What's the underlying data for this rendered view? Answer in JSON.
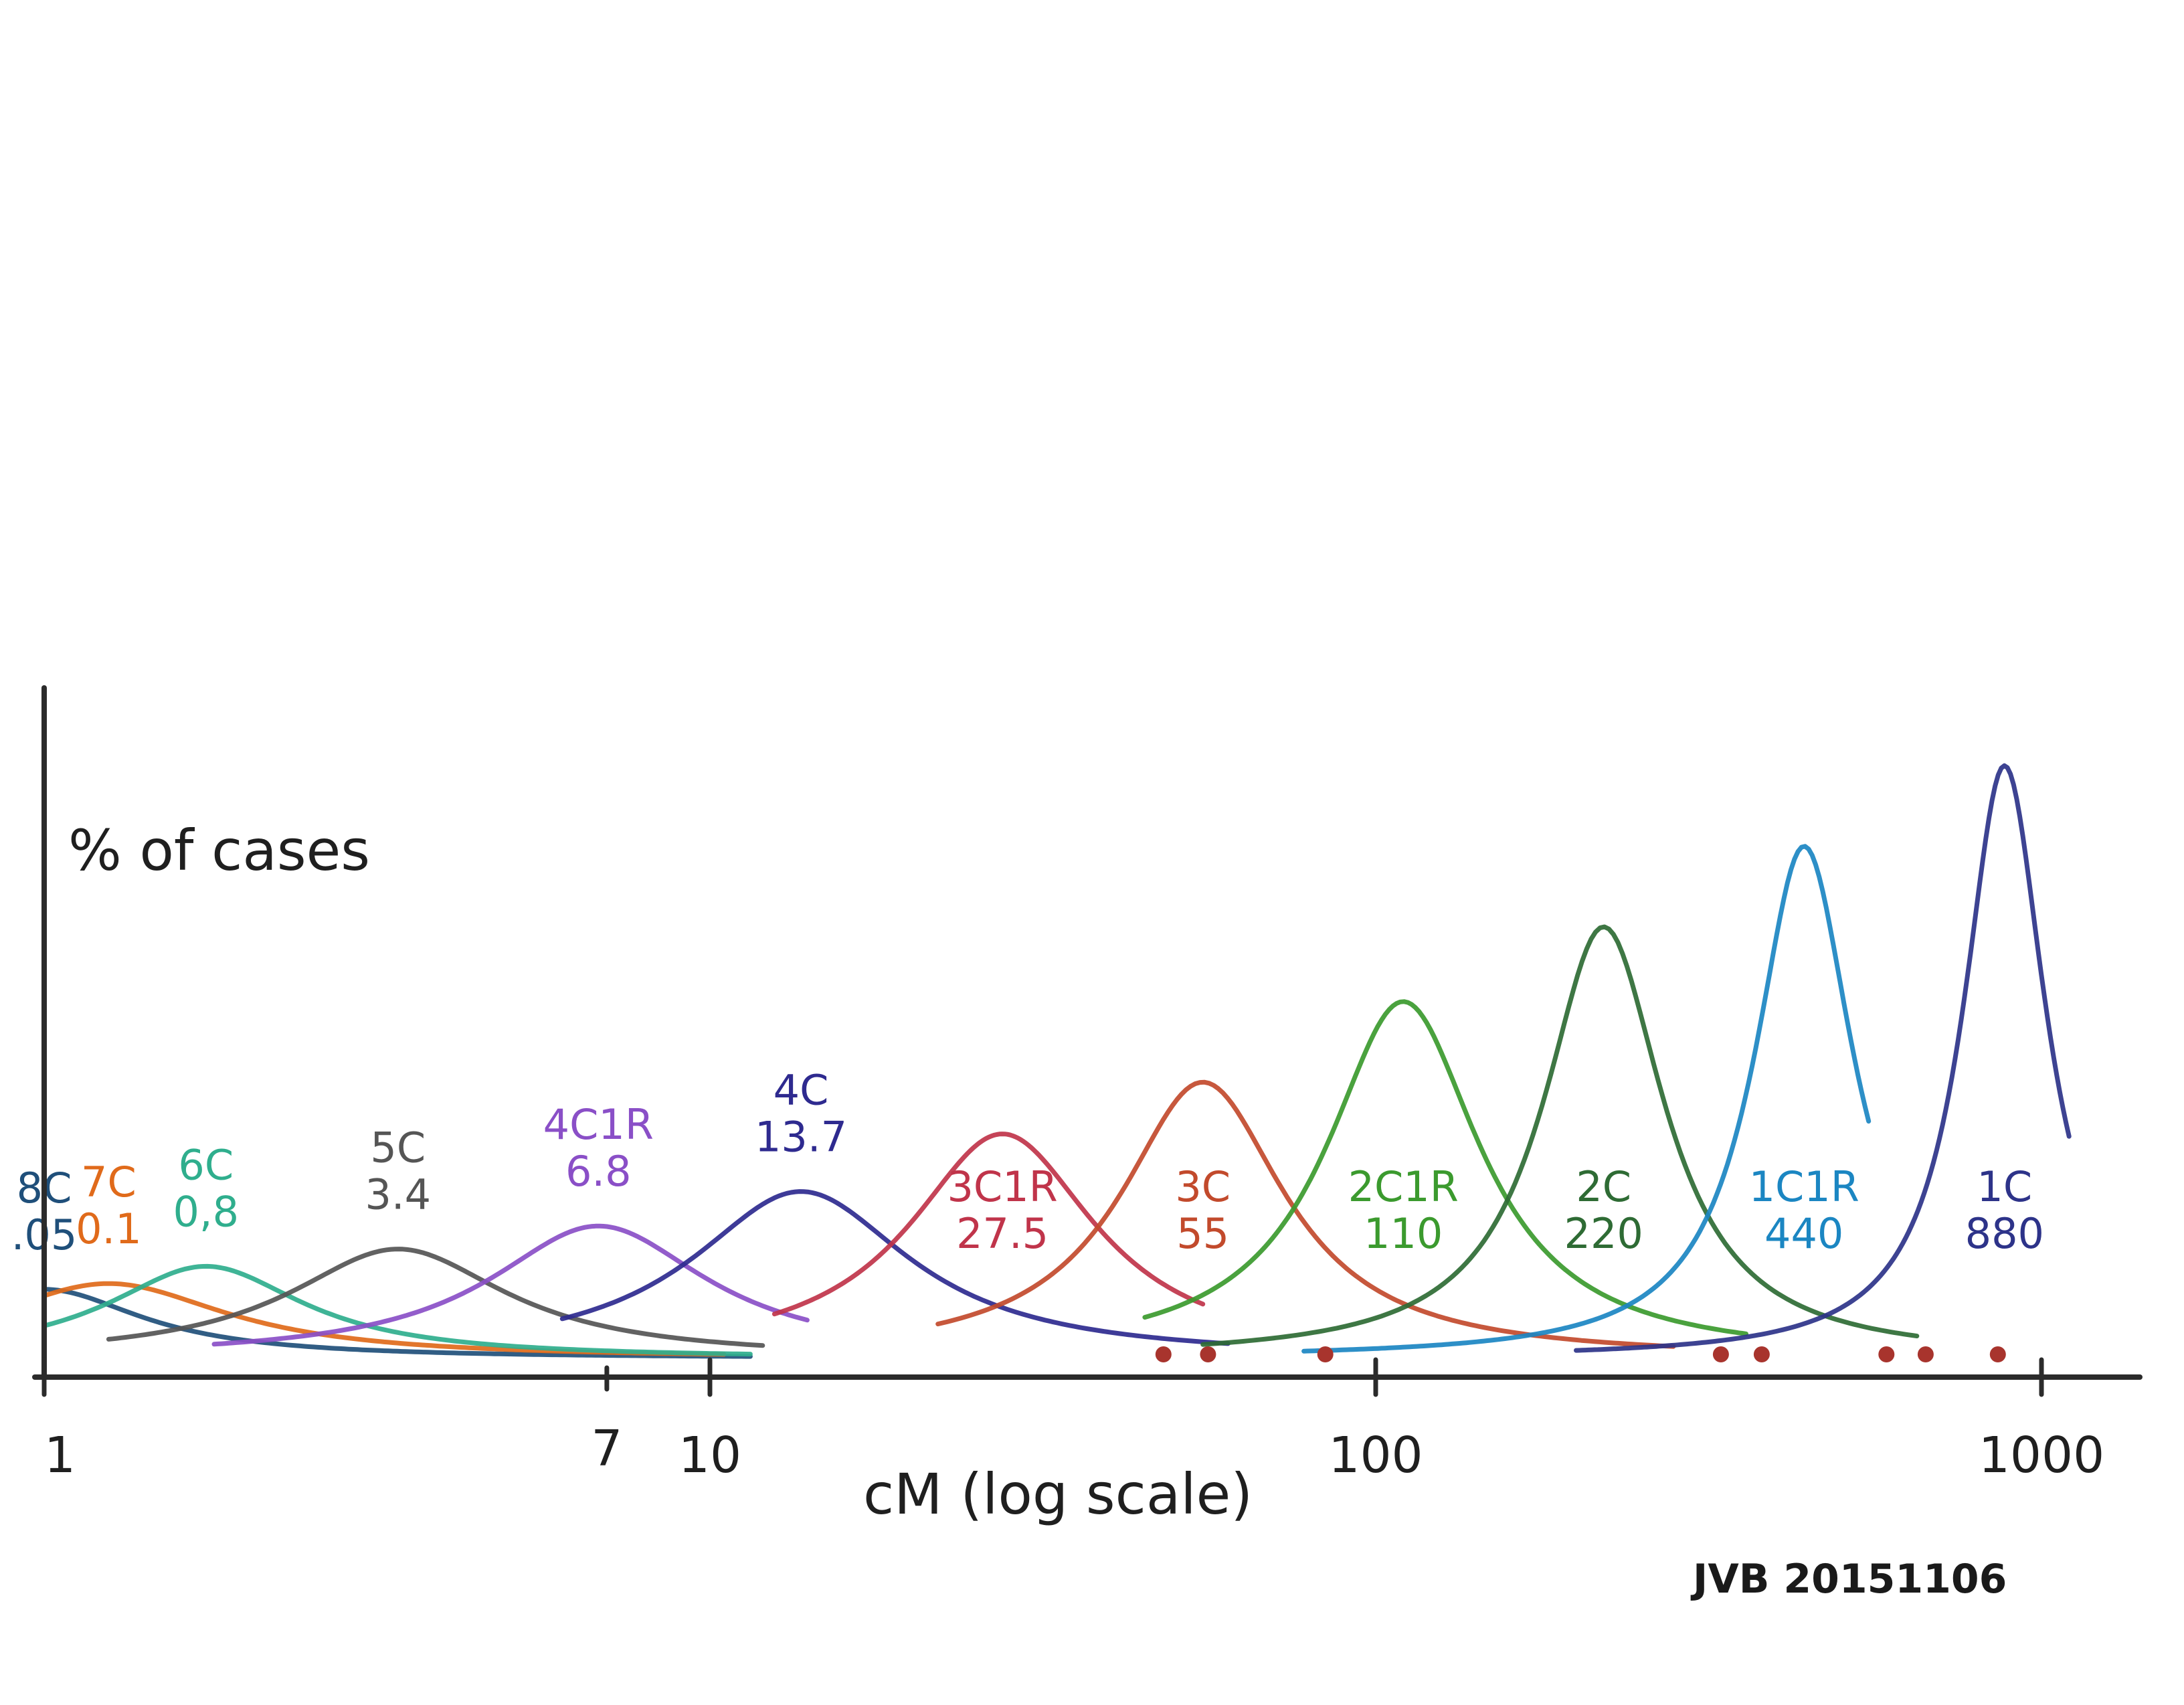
{
  "chart_data": {
    "type": "line",
    "title": "",
    "xlabel": "cM (log scale)",
    "ylabel": "% of cases",
    "xscale": "log",
    "xlim": [
      1,
      1100
    ],
    "ylim": [
      0,
      100
    ],
    "grid": false,
    "x_ticks": [
      {
        "value": 1,
        "label": "1"
      },
      {
        "value": 10,
        "label": "10"
      },
      {
        "value": 100,
        "label": "100"
      },
      {
        "value": 1000,
        "label": "1000"
      }
    ],
    "extra_tick": {
      "value": 7,
      "label": "7"
    },
    "series": [
      {
        "name": "8C",
        "label_top": "8C",
        "label_bottom": ".05",
        "peak_x": 1.0,
        "peak_y": 12,
        "spread": 0.18,
        "range": [
          1.0,
          11.5
        ],
        "color": "#1f4f7a"
      },
      {
        "name": "7C",
        "label_top": "7C",
        "label_bottom": "0.1",
        "peak_x": 1.25,
        "peak_y": 13,
        "spread": 0.22,
        "range": [
          1.0,
          10.5
        ],
        "color": "#e06a1a"
      },
      {
        "name": "6C",
        "label_top": "6C",
        "label_bottom": "0,8",
        "peak_x": 1.75,
        "peak_y": 16,
        "spread": 0.18,
        "range": [
          1.0,
          11.5
        ],
        "color": "#2fae8d"
      },
      {
        "name": "5C",
        "label_top": "5C",
        "label_bottom": "3.4",
        "peak_x": 3.4,
        "peak_y": 19,
        "spread": 0.2,
        "range": [
          1.25,
          12.0
        ],
        "color": "#555555"
      },
      {
        "name": "4C1R",
        "label_top": "4C1R",
        "label_bottom": "6.8",
        "peak_x": 6.8,
        "peak_y": 23,
        "spread": 0.2,
        "range": [
          1.8,
          14.0
        ],
        "color": "#8a4fc7"
      },
      {
        "name": "4C",
        "label_top": "4C",
        "label_bottom": "13.7",
        "peak_x": 13.7,
        "peak_y": 29,
        "spread": 0.2,
        "range": [
          6.0,
          60.0
        ],
        "color": "#2e2a8f"
      },
      {
        "name": "3C1R",
        "label_top": "3C1R",
        "label_bottom": "27.5",
        "peak_x": 27.5,
        "peak_y": 39,
        "spread": 0.17,
        "range": [
          12.5,
          55.0
        ],
        "color": "#c0344a"
      },
      {
        "name": "3C",
        "label_top": "3C",
        "label_bottom": "55",
        "peak_x": 55,
        "peak_y": 48,
        "spread": 0.15,
        "range": [
          22.0,
          280.0
        ],
        "color": "#c24a2c"
      },
      {
        "name": "2C1R",
        "label_top": "2C1R",
        "label_bottom": "110",
        "peak_x": 110,
        "peak_y": 62,
        "spread": 0.14,
        "range": [
          45.0,
          360.0
        ],
        "color": "#3b9a2e"
      },
      {
        "name": "2C",
        "label_top": "2C",
        "label_bottom": "220",
        "peak_x": 220,
        "peak_y": 75,
        "spread": 0.11,
        "range": [
          55.0,
          650.0
        ],
        "color": "#2e6b34"
      },
      {
        "name": "1C1R",
        "label_top": "1C1R",
        "label_bottom": "440",
        "peak_x": 440,
        "peak_y": 89,
        "spread": 0.09,
        "range": [
          78.0,
          550.0
        ],
        "color": "#1b86c2"
      },
      {
        "name": "1C",
        "label_top": "1C",
        "label_bottom": "880",
        "peak_x": 880,
        "peak_y": 103,
        "spread": 0.075,
        "range": [
          200.0,
          1100.0
        ],
        "color": "#2d3389"
      }
    ],
    "end_points": [
      48,
      56,
      84,
      330,
      380,
      585,
      670,
      860
    ],
    "annotation": "JVB 20151106"
  }
}
